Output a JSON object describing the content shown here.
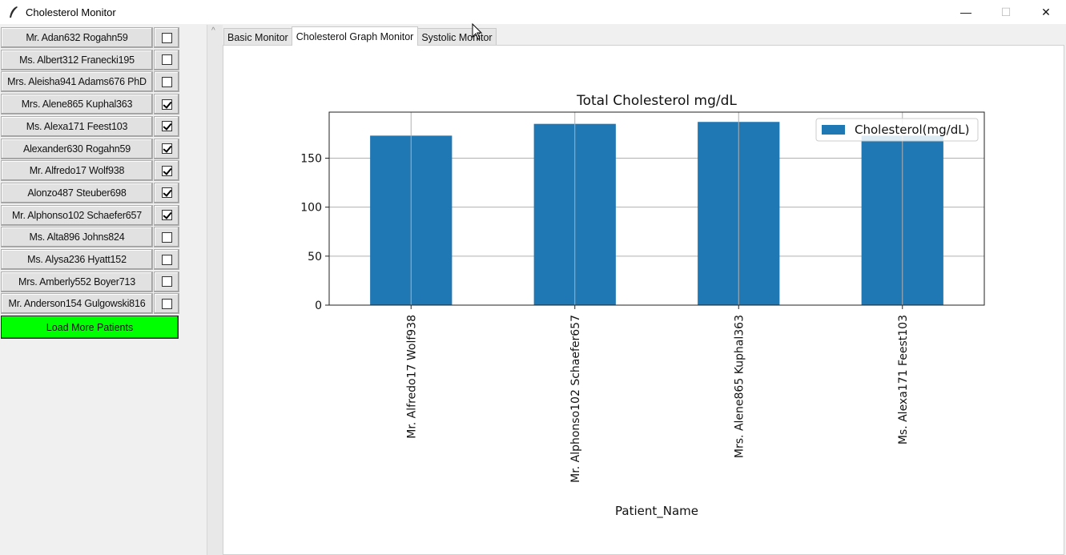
{
  "window": {
    "title": "Cholesterol Monitor",
    "app_icon": "feather-icon",
    "controls": {
      "minimize": "—",
      "maximize": "☐",
      "close": "✕"
    }
  },
  "patients": [
    {
      "name": "Mr. Adan632 Rogahn59",
      "checked": false
    },
    {
      "name": "Ms. Albert312 Franecki195",
      "checked": false
    },
    {
      "name": "Mrs. Aleisha941 Adams676 PhD",
      "checked": false
    },
    {
      "name": "Mrs. Alene865 Kuphal363",
      "checked": true
    },
    {
      "name": "Ms. Alexa171 Feest103",
      "checked": true
    },
    {
      "name": "Alexander630 Rogahn59",
      "checked": true
    },
    {
      "name": "Mr. Alfredo17 Wolf938",
      "checked": true
    },
    {
      "name": "Alonzo487 Steuber698",
      "checked": true
    },
    {
      "name": "Mr. Alphonso102 Schaefer657",
      "checked": true
    },
    {
      "name": "Ms. Alta896 Johns824",
      "checked": false
    },
    {
      "name": "Ms. Alysa236 Hyatt152",
      "checked": false
    },
    {
      "name": "Mrs. Amberly552 Boyer713",
      "checked": false
    },
    {
      "name": "Mr. Anderson154 Gulgowski816",
      "checked": false
    }
  ],
  "load_more_label": "Load More Patients",
  "load_more_color": "#00ff00",
  "tabs": [
    {
      "label": "Basic Monitor",
      "active": false
    },
    {
      "label": "Cholesterol Graph Monitor",
      "active": true
    },
    {
      "label": "Systolic Monitor",
      "active": false
    }
  ],
  "chart_data": {
    "type": "bar",
    "title": "Total Cholesterol mg/dL",
    "xlabel": "Patient_Name",
    "ylabel": "",
    "categories": [
      "Mr. Alfredo17 Wolf938",
      "Mr. Alphonso102 Schaefer657",
      "Mrs. Alene865 Kuphal363",
      "Ms. Alexa171 Feest103"
    ],
    "series": [
      {
        "name": "Cholesterol(mg/dL)",
        "values": [
          173,
          185,
          187,
          173
        ],
        "color": "#1f77b4"
      }
    ],
    "ylim": [
      0,
      197
    ],
    "yticks": [
      0,
      50,
      100,
      150
    ],
    "grid": true,
    "legend": "top-right"
  }
}
